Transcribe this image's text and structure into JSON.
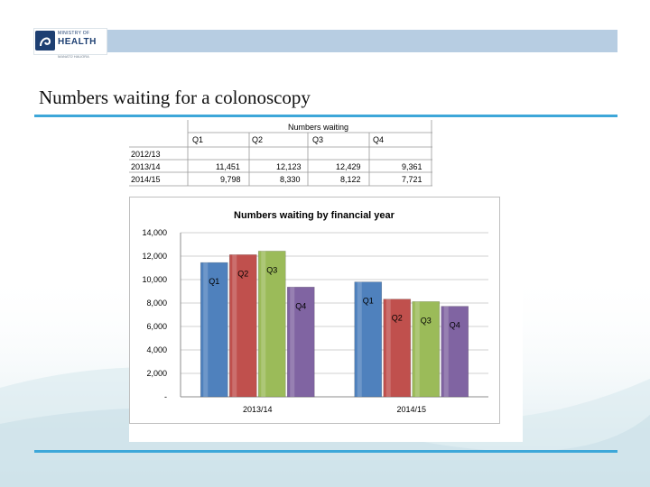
{
  "logo": {
    "line1": "MINISTRY OF",
    "line2": "HEALTH",
    "line3": "MANATŪ HAUORA"
  },
  "slide": {
    "title": "Numbers waiting for a colonoscopy"
  },
  "table": {
    "title": "Numbers waiting",
    "columns": [
      "Q1",
      "Q2",
      "Q3",
      "Q4"
    ],
    "rows": [
      {
        "label": "2012/13",
        "values": [
          "",
          "",
          "",
          ""
        ]
      },
      {
        "label": "2013/14",
        "values": [
          "11,451",
          "12,123",
          "12,429",
          "9,361"
        ]
      },
      {
        "label": "2014/15",
        "values": [
          "9,798",
          "8,330",
          "8,122",
          "7,721"
        ]
      }
    ]
  },
  "chart_data": {
    "type": "bar",
    "title": "Numbers waiting by financial year",
    "categories": [
      "2013/14",
      "2014/15"
    ],
    "series": [
      {
        "name": "Q1",
        "values": [
          11451,
          9798
        ],
        "color": "#4f81bd"
      },
      {
        "name": "Q2",
        "values": [
          12123,
          8330
        ],
        "color": "#c0504d"
      },
      {
        "name": "Q3",
        "values": [
          12429,
          8122
        ],
        "color": "#9bbb59"
      },
      {
        "name": "Q4",
        "values": [
          9361,
          7721
        ],
        "color": "#8064a2"
      }
    ],
    "ylim": [
      0,
      14000
    ],
    "yticks": [
      0,
      2000,
      4000,
      6000,
      8000,
      10000,
      12000,
      14000
    ],
    "ytick_labels": [
      "-",
      "2,000",
      "4,000",
      "6,000",
      "8,000",
      "10,000",
      "12,000",
      "14,000"
    ],
    "grid": true,
    "legend": "none"
  },
  "colors": {
    "accent_rule": "#3da7d9",
    "header_bar": "#b7cde2",
    "brand_navy": "#1d3f72"
  }
}
